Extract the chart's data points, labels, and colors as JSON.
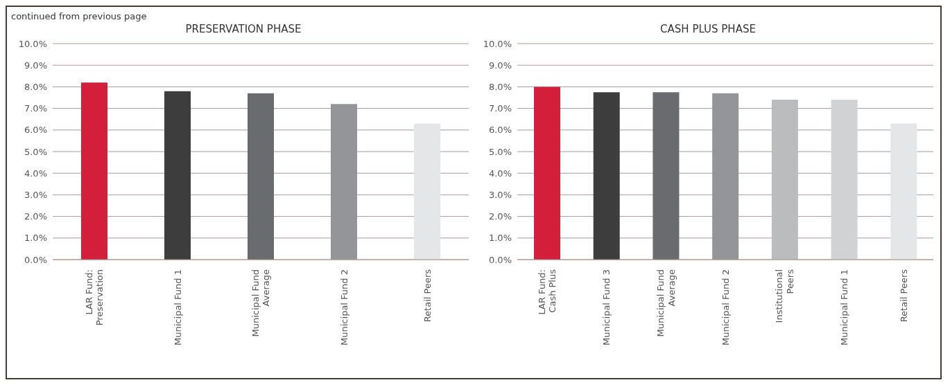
{
  "chart_data": [
    {
      "type": "bar",
      "title": "PRESERVATION PHASE",
      "annotations": [
        "continued from previous page"
      ],
      "categories": [
        "LAR Fund:\nPreservation",
        "Municipal Fund 1",
        "Municipal Fund\nAverage",
        "Municipal Fund 2",
        "Retail Peers"
      ],
      "values": [
        8.2,
        7.8,
        7.7,
        7.2,
        6.3
      ],
      "colors": [
        "#d31f3a",
        "#3d3d3d",
        "#6a6b6f",
        "#939598",
        "#e5e6e7"
      ],
      "ylim": [
        0,
        10
      ],
      "yticks": [
        {
          "value": 0,
          "label": "0.0%"
        },
        {
          "value": 1,
          "label": "1.0%"
        },
        {
          "value": 2,
          "label": "2.0%"
        },
        {
          "value": 3,
          "label": "3.0%"
        },
        {
          "value": 4,
          "label": "4.0%"
        },
        {
          "value": 5,
          "label": "5.0%"
        },
        {
          "value": 6,
          "label": "6.0%"
        },
        {
          "value": 7,
          "label": "7.0%"
        },
        {
          "value": 8,
          "label": "8.0%"
        },
        {
          "value": 9,
          "label": "9.0%"
        },
        {
          "value": 10,
          "label": "10.0%"
        }
      ],
      "grid": "y"
    },
    {
      "type": "bar",
      "title": "CASH PLUS PHASE",
      "categories": [
        "LAR Fund:\nCash Plus",
        "Municipal Fund 3",
        "Municipal Fund\nAverage",
        "Municipal Fund 2",
        "Institutional\nPeers",
        "Municipal Fund 1",
        "Retail Peers"
      ],
      "values": [
        8.0,
        7.75,
        7.75,
        7.7,
        7.4,
        7.4,
        6.3
      ],
      "colors": [
        "#d31f3a",
        "#3d3d3d",
        "#6a6b6f",
        "#939598",
        "#bbbcbe",
        "#d1d2d4",
        "#e5e6e7"
      ],
      "ylim": [
        0,
        10
      ],
      "yticks": [
        {
          "value": 0,
          "label": "0.0%"
        },
        {
          "value": 1,
          "label": "1.0%"
        },
        {
          "value": 2,
          "label": "2.0%"
        },
        {
          "value": 3,
          "label": "3.0%"
        },
        {
          "value": 4,
          "label": "4.0%"
        },
        {
          "value": 5,
          "label": "5.0%"
        },
        {
          "value": 6,
          "label": "6.0%"
        },
        {
          "value": 7,
          "label": "7.0%"
        },
        {
          "value": 8,
          "label": "8.0%"
        },
        {
          "value": 9,
          "label": "9.0%"
        },
        {
          "value": 10,
          "label": "10.0%"
        }
      ],
      "grid": "y"
    }
  ]
}
